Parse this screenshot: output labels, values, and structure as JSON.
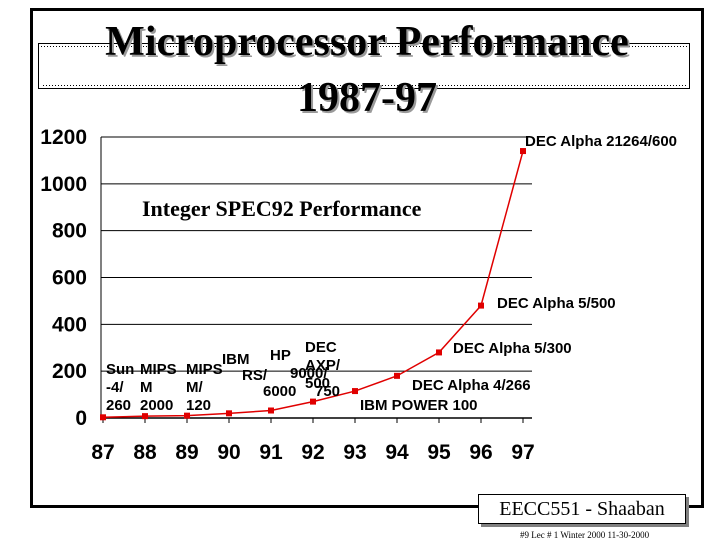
{
  "slide": {
    "title_line_1": "Microprocessor Performance",
    "title_line_2": "1987-97",
    "footer_label": "EECC551 - Shaaban",
    "footer_note": "#9   Lec # 1  Winter 2000   11-30-2000"
  },
  "chart_data": {
    "type": "line",
    "title": "Integer SPEC92 Performance",
    "xlabel": "",
    "ylabel": "",
    "categories": [
      "87",
      "88",
      "89",
      "90",
      "91",
      "92",
      "93",
      "94",
      "95",
      "96",
      "97"
    ],
    "y_ticks": [
      "0",
      "200",
      "400",
      "600",
      "800",
      "1000",
      "1200"
    ],
    "ylim": [
      0,
      1200
    ],
    "grid": true,
    "series": [
      {
        "values": [
          3,
          8,
          10,
          20,
          32,
          70,
          115,
          180,
          280,
          480,
          1140
        ],
        "color": "#e00000"
      }
    ],
    "annotations": [
      {
        "lines": [
          "Sun",
          "-4/",
          "260"
        ]
      },
      {
        "lines": [
          "MIPS",
          "M",
          "2000"
        ]
      },
      {
        "lines": [
          "MIPS",
          "M/",
          "120"
        ]
      },
      {
        "lines": [
          "IBM",
          "RS/",
          "6000"
        ]
      },
      {
        "lines": [
          "HP",
          "9000/",
          "750"
        ]
      },
      {
        "lines": [
          "DEC",
          "AXP/",
          "500"
        ]
      },
      {
        "lines": [
          "IBM POWER 100"
        ]
      },
      {
        "lines": [
          "DEC Alpha 4/266"
        ]
      },
      {
        "lines": [
          "DEC Alpha 5/300"
        ]
      },
      {
        "lines": [
          "DEC Alpha 5/500"
        ]
      },
      {
        "lines": [
          "DEC Alpha 21264/600"
        ]
      }
    ]
  }
}
